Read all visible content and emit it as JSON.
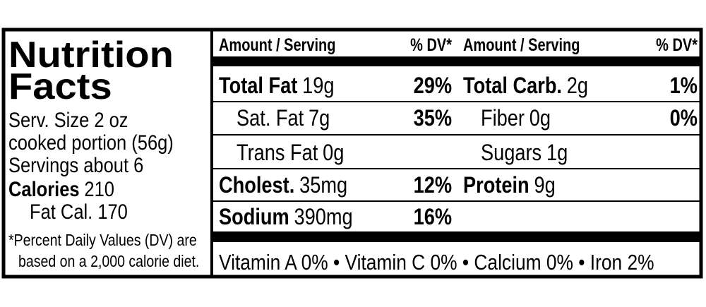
{
  "title_lines": [
    "Nutrition",
    "Facts"
  ],
  "serving": {
    "size": "Serv. Size 2 oz",
    "size_detail": "cooked portion (56g)",
    "servings": "Servings about 6",
    "calories_label": "Calories",
    "calories": "210",
    "fat_calories": "Fat Cal. 170"
  },
  "footnote": [
    "*Percent Daily Values (DV) are",
    "based on a 2,000 calorie diet."
  ],
  "headers": {
    "amount": "Amount / Serving",
    "dv": "% DV*"
  },
  "columns": [
    [
      {
        "name": "Total Fat",
        "amount": "19g",
        "dv": "29%",
        "bold": true
      },
      {
        "name": "Sat. Fat",
        "amount": "7g",
        "dv": "35%",
        "bold": false,
        "indent": true
      },
      {
        "name": "Trans Fat",
        "amount": "0g",
        "bold": false,
        "indent": true
      },
      {
        "name": "Cholest.",
        "amount": "35mg",
        "dv": "12%",
        "bold": true
      },
      {
        "name": "Sodium",
        "amount": "390mg",
        "dv": "16%",
        "bold": true
      }
    ],
    [
      {
        "name": "Total Carb.",
        "amount": "2g",
        "dv": "1%",
        "bold": true
      },
      {
        "name": "Fiber",
        "amount": "0g",
        "dv": "0%",
        "bold": false,
        "indent": true
      },
      {
        "name": "Sugars",
        "amount": "1g",
        "bold": false,
        "indent": true
      },
      {
        "name": "Protein",
        "amount": "9g",
        "bold": true
      }
    ]
  ],
  "vitamins": "Vitamin A 0% • Vitamin C 0% • Calcium 0% • Iron 2%"
}
